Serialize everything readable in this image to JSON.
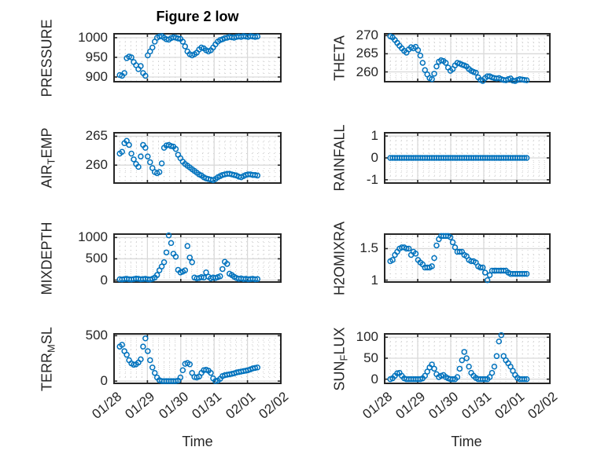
{
  "title": "Figure 2 low",
  "xlabel": "Time",
  "colors": {
    "marker": "#0072BD",
    "axis": "#262626",
    "grid": "#d9d9d9",
    "minor_grid": "#cccccc",
    "background": "#ffffff",
    "text": "#262626"
  },
  "chart_data": {
    "type": "scatter",
    "marker": "open-circle",
    "grid": "on",
    "minor_grid": "dotted",
    "xlabel": "Time",
    "x_tick_labels": [
      "01/28",
      "01/29",
      "01/30",
      "01/31",
      "02/01",
      "02/02"
    ],
    "xlim_days": [
      0,
      5
    ],
    "x_days_from_0128": [
      0.17,
      0.24,
      0.31,
      0.38,
      0.45,
      0.52,
      0.59,
      0.66,
      0.73,
      0.8,
      0.87,
      0.94,
      1.01,
      1.08,
      1.15,
      1.22,
      1.29,
      1.36,
      1.43,
      1.5,
      1.57,
      1.64,
      1.71,
      1.78,
      1.85,
      1.92,
      1.99,
      2.06,
      2.13,
      2.2,
      2.27,
      2.34,
      2.41,
      2.48,
      2.55,
      2.62,
      2.69,
      2.76,
      2.83,
      2.9,
      2.97,
      3.04,
      3.11,
      3.18,
      3.25,
      3.32,
      3.39,
      3.46,
      3.53,
      3.6,
      3.67,
      3.74,
      3.81,
      3.88,
      3.95,
      4.02,
      4.09,
      4.16,
      4.23,
      4.3
    ],
    "subplots": [
      {
        "name": "PRESSURE",
        "ylabel_parts": [
          {
            "t": "PRESSURE"
          }
        ],
        "yticks": [
          900,
          950,
          1000
        ],
        "ylim": [
          888,
          1010
        ],
        "yminor": 10,
        "values": [
          905,
          903,
          910,
          948,
          952,
          950,
          938,
          930,
          920,
          928,
          910,
          903,
          955,
          965,
          975,
          990,
          1000,
          1003,
          1004,
          1000,
          996,
          995,
          999,
          1001,
          1000,
          998,
          997,
          990,
          978,
          965,
          958,
          955,
          958,
          962,
          970,
          975,
          973,
          968,
          965,
          968,
          975,
          983,
          990,
          994,
          996,
          999,
          1000,
          1002,
          1001,
          1000,
          1002,
          1003,
          1002,
          1004,
          1003,
          1002,
          1004,
          1003,
          1002,
          1003
        ]
      },
      {
        "name": "THETA",
        "ylabel_parts": [
          {
            "t": "THETA"
          }
        ],
        "yticks": [
          260,
          265,
          270
        ],
        "ylim": [
          257.3,
          270.5
        ],
        "yminor": 1,
        "values": [
          269.8,
          269.5,
          268.8,
          268,
          267.2,
          266.5,
          265.8,
          265.3,
          266.2,
          266.8,
          266.5,
          266.9,
          266,
          264.5,
          262.5,
          260.5,
          259.3,
          258.3,
          258,
          259.5,
          261.5,
          262.8,
          263.2,
          263,
          262.5,
          261.2,
          260.3,
          260.8,
          261.8,
          262.5,
          262.3,
          262,
          261.8,
          261.5,
          260.8,
          260.3,
          260,
          259.8,
          258.5,
          257.8,
          257.5,
          258.3,
          258.8,
          258.8,
          258.5,
          258.3,
          258.2,
          258.3,
          258,
          257.8,
          257.7,
          258,
          258.2,
          257.6,
          257.5,
          257.8,
          258,
          257.9,
          257.8,
          257.7
        ]
      },
      {
        "name": "AIR_TEMP",
        "ylabel_parts": [
          {
            "t": "AIR"
          },
          {
            "s": "T"
          },
          {
            "t": "EMP"
          }
        ],
        "yticks": [
          260,
          265
        ],
        "ylim": [
          256.9,
          265.6
        ],
        "yminor": 1,
        "values": [
          262,
          262.3,
          263.8,
          264.2,
          263.5,
          262,
          261,
          260.2,
          259.7,
          261.5,
          263.5,
          263,
          261.5,
          260.5,
          259.5,
          258.8,
          258.6,
          258.8,
          260.3,
          263,
          263.4,
          263.5,
          263.3,
          263.2,
          262.8,
          261.8,
          261.2,
          260.6,
          260.2,
          259.9,
          259.6,
          259.3,
          259,
          258.7,
          258.4,
          258.2,
          257.9,
          257.7,
          257.6,
          257.5,
          257.4,
          257.6,
          257.9,
          258.1,
          258.3,
          258.4,
          258.5,
          258.5,
          258.4,
          258.3,
          258.2,
          258,
          257.9,
          258.1,
          258.3,
          258.4,
          258.4,
          258.3,
          258.3,
          258.2
        ]
      },
      {
        "name": "RAINFALL",
        "ylabel_parts": [
          {
            "t": "RAINFALL"
          }
        ],
        "yticks": [
          -1,
          0,
          1
        ],
        "ylim": [
          -1.15,
          1.15
        ],
        "yminor": 0.2,
        "values": [
          0,
          0,
          0,
          0,
          0,
          0,
          0,
          0,
          0,
          0,
          0,
          0,
          0,
          0,
          0,
          0,
          0,
          0,
          0,
          0,
          0,
          0,
          0,
          0,
          0,
          0,
          0,
          0,
          0,
          0,
          0,
          0,
          0,
          0,
          0,
          0,
          0,
          0,
          0,
          0,
          0,
          0,
          0,
          0,
          0,
          0,
          0,
          0,
          0,
          0,
          0,
          0,
          0,
          0,
          0,
          0,
          0,
          0,
          0,
          0
        ]
      },
      {
        "name": "MIXDEPTH",
        "ylabel_parts": [
          {
            "t": "MIXDEPTH"
          }
        ],
        "yticks": [
          0,
          500,
          1000
        ],
        "ylim": [
          -45,
          1080
        ],
        "yminor": 100,
        "values": [
          20,
          15,
          25,
          30,
          20,
          15,
          25,
          35,
          30,
          20,
          25,
          30,
          20,
          15,
          30,
          60,
          120,
          230,
          320,
          420,
          650,
          1050,
          870,
          620,
          550,
          240,
          180,
          200,
          230,
          800,
          530,
          420,
          60,
          40,
          50,
          70,
          60,
          180,
          80,
          40,
          60,
          50,
          70,
          90,
          260,
          430,
          380,
          150,
          120,
          80,
          50,
          30,
          40,
          25,
          30,
          20,
          25,
          30,
          20,
          25
        ]
      },
      {
        "name": "H2OMIXRA",
        "ylabel_parts": [
          {
            "t": "H2OMIXRA"
          }
        ],
        "yticks": [
          1,
          1.5
        ],
        "ylim": [
          0.97,
          1.73
        ],
        "yminor": 0.1,
        "values": [
          1.3,
          1.32,
          1.4,
          1.45,
          1.5,
          1.52,
          1.52,
          1.5,
          1.5,
          1.4,
          1.45,
          1.42,
          1.32,
          1.28,
          1.25,
          1.2,
          1.2,
          1.2,
          1.22,
          1.35,
          1.55,
          1.65,
          1.7,
          1.7,
          1.7,
          1.7,
          1.68,
          1.6,
          1.52,
          1.45,
          1.45,
          1.45,
          1.4,
          1.38,
          1.32,
          1.3,
          1.3,
          1.28,
          1.22,
          1.2,
          1.2,
          1.12,
          1,
          1.08,
          1.15,
          1.15,
          1.15,
          1.15,
          1.15,
          1.15,
          1.15,
          1.12,
          1.1,
          1.1,
          1.1,
          1.1,
          1.1,
          1.1,
          1.1,
          1.1
        ]
      },
      {
        "name": "TERR_MSL",
        "ylabel_parts": [
          {
            "t": "TERR"
          },
          {
            "s": "M"
          },
          {
            "t": "SL"
          }
        ],
        "yticks": [
          0,
          500
        ],
        "ylim": [
          -25,
          520
        ],
        "yminor": 50,
        "values": [
          380,
          400,
          330,
          290,
          230,
          195,
          180,
          185,
          205,
          240,
          380,
          470,
          330,
          230,
          150,
          90,
          40,
          10,
          0,
          0,
          0,
          0,
          0,
          0,
          0,
          5,
          40,
          120,
          190,
          200,
          185,
          90,
          45,
          40,
          50,
          90,
          120,
          125,
          115,
          90,
          30,
          0,
          5,
          25,
          55,
          65,
          70,
          75,
          80,
          85,
          95,
          100,
          105,
          110,
          115,
          120,
          130,
          140,
          145,
          150
        ]
      },
      {
        "name": "SUN_FLUX",
        "ylabel_parts": [
          {
            "t": "SUN"
          },
          {
            "s": "F"
          },
          {
            "t": "LUX"
          }
        ],
        "yticks": [
          0,
          50,
          100
        ],
        "ylim": [
          -10,
          108
        ],
        "yminor": 10,
        "values": [
          0,
          2,
          8,
          14,
          15,
          8,
          2,
          0,
          0,
          0,
          0,
          0,
          0,
          0,
          2,
          8,
          18,
          28,
          35,
          25,
          12,
          5,
          8,
          10,
          5,
          2,
          0,
          0,
          0,
          5,
          25,
          45,
          65,
          50,
          30,
          15,
          8,
          3,
          0,
          0,
          0,
          0,
          0,
          5,
          15,
          30,
          55,
          90,
          105,
          55,
          45,
          38,
          30,
          20,
          10,
          3,
          0,
          0,
          0,
          0
        ]
      }
    ]
  }
}
